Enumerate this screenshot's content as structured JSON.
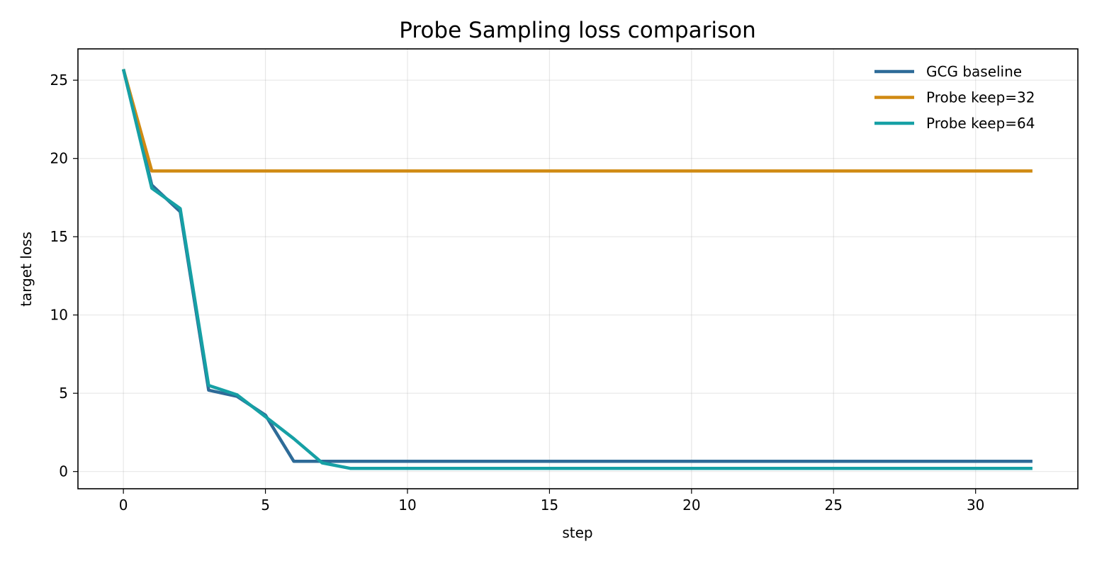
{
  "chart_data": {
    "type": "line",
    "title": "Probe Sampling loss comparison",
    "xlabel": "step",
    "ylabel": "target loss",
    "xlim": [
      -1.6,
      33.6
    ],
    "ylim": [
      -1.1,
      27.0
    ],
    "xticks": [
      0,
      5,
      10,
      15,
      20,
      25,
      30
    ],
    "yticks": [
      0,
      5,
      10,
      15,
      20,
      25
    ],
    "grid": true,
    "legend_position": "top-right",
    "series": [
      {
        "name": "GCG baseline",
        "color": "#2e6b98",
        "x": [
          0,
          1,
          2,
          3,
          4,
          5,
          6,
          7,
          8,
          32
        ],
        "y": [
          25.7,
          18.3,
          16.6,
          5.2,
          4.8,
          3.6,
          0.65,
          0.65,
          0.65,
          0.65
        ]
      },
      {
        "name": "Probe keep=32",
        "color": "#d08a12",
        "x": [
          0,
          1,
          2,
          32
        ],
        "y": [
          25.7,
          19.2,
          19.2,
          19.2
        ]
      },
      {
        "name": "Probe keep=64",
        "color": "#16a0a5",
        "x": [
          0,
          1,
          2,
          3,
          4,
          5,
          6,
          7,
          8,
          32
        ],
        "y": [
          25.7,
          18.1,
          16.8,
          5.5,
          4.9,
          3.5,
          2.1,
          0.55,
          0.2,
          0.2
        ]
      }
    ]
  }
}
